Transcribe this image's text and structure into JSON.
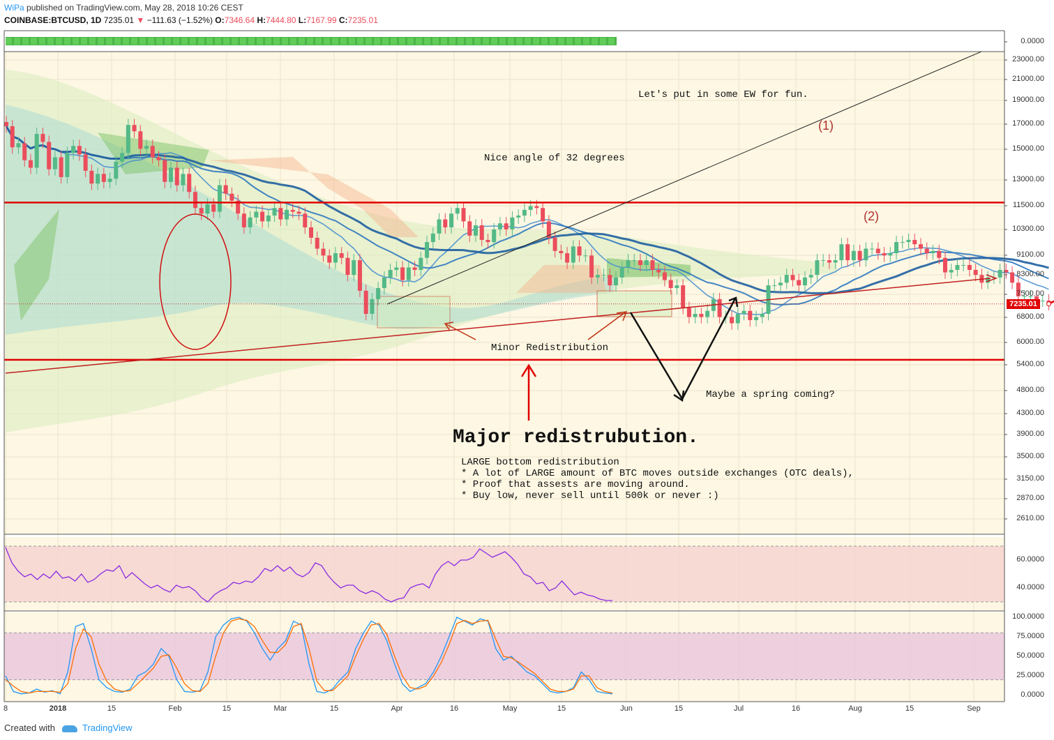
{
  "header": {
    "brand": "WiPa",
    "published": "published on TradingView.com, May 28, 2018 10:26 CEST",
    "symbol": "COINBASE:BTCUSD, 1D",
    "last": "7235.01",
    "change": "−111.63 (−1.52%)",
    "o_label": "O:",
    "o": "7346.64",
    "h_label": "H:",
    "h": "7444.80",
    "l_label": "L:",
    "l": "7167.99",
    "c_label": "C:",
    "c": "7235.01"
  },
  "footer": {
    "created_with": "Created with",
    "brand": "TradingView"
  },
  "annotations": {
    "ew": "Let's put in some EW for fun.",
    "angle": "Nice angle of 32 degrees",
    "minor": "Minor Redistribution",
    "spring": "Maybe a spring coming?",
    "major": "Major redistrubution.",
    "notes": [
      "LARGE bottom redistribution",
      "* A lot of LARGE amount of BTC moves outside exchanges (OTC deals),",
      "* Proof that assests are moving around.",
      "* Buy low, never sell until 500k or never :)"
    ],
    "wave1": "(1)",
    "wave2": "(2)"
  },
  "colors": {
    "up": "#53b987",
    "down": "#eb4d5c",
    "annotation_red": "#e00000",
    "rsi": "#8a2be2",
    "stoch_k": "#2196f3",
    "stoch_d": "#ff6d00"
  },
  "chart_data": [
    {
      "type": "candlestick",
      "title": "COINBASE:BTCUSD, 1D",
      "scale": "log",
      "ylim": [
        2400,
        24000
      ],
      "y_ticks": [
        "0.0000",
        "23000.00",
        "21000.00",
        "19000.00",
        "17000.00",
        "15000.00",
        "13000.00",
        "11500.00",
        "10300.00",
        "9100.00",
        "8300.00",
        "7500.00",
        "6800.00",
        "6000.00",
        "5400.00",
        "4800.00",
        "4300.00",
        "3900.00",
        "3500.00",
        "3150.00",
        "2870.00",
        "2610.00"
      ],
      "x_ticks": [
        "8",
        "2018",
        "15",
        "Feb",
        "15",
        "Mar",
        "15",
        "Apr",
        "16",
        "May",
        "15",
        "Jun",
        "15",
        "Jul",
        "16",
        "Aug",
        "15",
        "Sep"
      ],
      "last_price_label": "7235.01",
      "candles": [
        {
          "d": "Dec 8",
          "c": 16800
        },
        {
          "d": "Dec 9",
          "c": 15200
        },
        {
          "d": "Dec 10",
          "c": 15500
        },
        {
          "d": "Dec 11",
          "c": 14300
        },
        {
          "d": "Dec 12",
          "c": 13800
        },
        {
          "d": "Dec 13",
          "c": 16200
        },
        {
          "d": "Dec 14",
          "c": 15600
        },
        {
          "d": "Dec 15",
          "c": 13700
        },
        {
          "d": "Dec 16",
          "c": 14500
        },
        {
          "d": "Dec 17",
          "c": 13200
        },
        {
          "d": "Dec 18",
          "c": 14800
        },
        {
          "d": "Dec 19",
          "c": 15300
        },
        {
          "d": "Dec 20",
          "c": 14700
        },
        {
          "d": "Dec 21",
          "c": 13600
        },
        {
          "d": "Dec 22",
          "c": 12800
        },
        {
          "d": "Dec 23",
          "c": 13400
        },
        {
          "d": "Dec 24",
          "c": 12900
        },
        {
          "d": "Dec 25",
          "c": 13100
        },
        {
          "d": "Dec 26",
          "c": 14200
        },
        {
          "d": "Dec 27",
          "c": 14800
        },
        {
          "d": "Dec 28",
          "c": 16900
        },
        {
          "d": "Dec 29",
          "c": 16400
        },
        {
          "d": "Dec 30",
          "c": 15100
        },
        {
          "d": "Dec 31",
          "c": 15300
        },
        {
          "d": "Jan 1",
          "c": 14500
        },
        {
          "d": "Jan 2",
          "c": 14300
        },
        {
          "d": "Jan 3",
          "c": 12900
        },
        {
          "d": "Jan 4",
          "c": 13800
        },
        {
          "d": "Jan 5",
          "c": 12700
        },
        {
          "d": "Jan 6",
          "c": 13400
        },
        {
          "d": "Jan 7",
          "c": 12300
        },
        {
          "d": "Jan 8",
          "c": 11400
        },
        {
          "d": "Jan 9",
          "c": 11100
        },
        {
          "d": "Jan 10",
          "c": 11600
        },
        {
          "d": "Jan 11",
          "c": 11200
        },
        {
          "d": "Jan 12",
          "c": 12700
        },
        {
          "d": "Jan 13",
          "c": 12200
        },
        {
          "d": "Jan 14",
          "c": 11800
        },
        {
          "d": "Jan 15",
          "c": 11100
        },
        {
          "d": "Jan 16",
          "c": 10400
        },
        {
          "d": "Jan 17",
          "c": 10900
        },
        {
          "d": "Jan 18",
          "c": 11200
        },
        {
          "d": "Jan 19",
          "c": 10700
        },
        {
          "d": "Jan 20",
          "c": 11000
        },
        {
          "d": "Jan 21",
          "c": 11400
        },
        {
          "d": "Jan 22",
          "c": 10800
        },
        {
          "d": "Jan 23",
          "c": 11300
        },
        {
          "d": "Jan 24",
          "c": 11200
        },
        {
          "d": "Jan 25",
          "c": 11100
        },
        {
          "d": "Jan 26",
          "c": 10400
        },
        {
          "d": "Jan 27",
          "c": 9900
        },
        {
          "d": "Jan 28",
          "c": 9400
        },
        {
          "d": "Jan 29",
          "c": 9100
        },
        {
          "d": "Jan 30",
          "c": 8800
        },
        {
          "d": "Jan 31",
          "c": 9200
        },
        {
          "d": "Feb 1",
          "c": 9000
        },
        {
          "d": "Feb 2",
          "c": 8300
        },
        {
          "d": "Feb 3",
          "c": 8900
        },
        {
          "d": "Feb 4",
          "c": 7700
        },
        {
          "d": "Feb 5",
          "c": 6900
        },
        {
          "d": "Feb 6",
          "c": 7400
        },
        {
          "d": "Feb 7",
          "c": 7800
        },
        {
          "d": "Feb 8",
          "c": 8200
        },
        {
          "d": "Feb 9",
          "c": 8500
        },
        {
          "d": "Feb 10",
          "c": 8600
        },
        {
          "d": "Feb 11",
          "c": 8100
        },
        {
          "d": "Feb 12",
          "c": 8600
        },
        {
          "d": "Feb 13",
          "c": 8500
        },
        {
          "d": "Feb 14",
          "c": 9000
        },
        {
          "d": "Feb 15",
          "c": 9700
        },
        {
          "d": "Feb 16",
          "c": 10100
        },
        {
          "d": "Feb 17",
          "c": 10800
        },
        {
          "d": "Feb 18",
          "c": 10400
        },
        {
          "d": "Feb 19",
          "c": 11100
        },
        {
          "d": "Feb 20",
          "c": 11400
        },
        {
          "d": "Feb 21",
          "c": 10700
        },
        {
          "d": "Feb 22",
          "c": 10000
        },
        {
          "d": "Feb 23",
          "c": 10500
        },
        {
          "d": "Feb 24",
          "c": 9800
        },
        {
          "d": "Feb 25",
          "c": 9700
        },
        {
          "d": "Feb 26",
          "c": 10300
        },
        {
          "d": "Feb 27",
          "c": 10600
        },
        {
          "d": "Feb 28",
          "c": 10300
        },
        {
          "d": "Mar 1",
          "c": 10900
        },
        {
          "d": "Mar 2",
          "c": 11000
        },
        {
          "d": "Mar 3",
          "c": 11300
        },
        {
          "d": "Mar 4",
          "c": 11500
        },
        {
          "d": "Mar 5",
          "c": 11400
        },
        {
          "d": "Mar 6",
          "c": 10700
        },
        {
          "d": "Mar 7",
          "c": 9900
        },
        {
          "d": "Mar 8",
          "c": 9300
        },
        {
          "d": "Mar 9",
          "c": 9200
        },
        {
          "d": "Mar 10",
          "c": 8800
        },
        {
          "d": "Mar 11",
          "c": 9500
        },
        {
          "d": "Mar 12",
          "c": 9100
        },
        {
          "d": "Mar 13",
          "c": 9100
        },
        {
          "d": "Mar 14",
          "c": 8200
        },
        {
          "d": "Mar 15",
          "c": 8300
        },
        {
          "d": "Mar 16",
          "c": 8300
        },
        {
          "d": "Mar 17",
          "c": 7900
        },
        {
          "d": "Mar 18",
          "c": 8200
        },
        {
          "d": "Mar 19",
          "c": 8600
        },
        {
          "d": "Mar 20",
          "c": 8900
        },
        {
          "d": "Mar 21",
          "c": 8900
        },
        {
          "d": "Mar 22",
          "c": 8700
        },
        {
          "d": "Mar 23",
          "c": 8900
        },
        {
          "d": "Mar 24",
          "c": 8500
        },
        {
          "d": "Mar 25",
          "c": 8400
        },
        {
          "d": "Mar 26",
          "c": 8100
        },
        {
          "d": "Mar 27",
          "c": 7800
        },
        {
          "d": "Mar 28",
          "c": 7900
        },
        {
          "d": "Mar 29",
          "c": 7100
        },
        {
          "d": "Mar 30",
          "c": 6800
        },
        {
          "d": "Mar 31",
          "c": 6900
        },
        {
          "d": "Apr 1",
          "c": 6800
        },
        {
          "d": "Apr 2",
          "c": 7000
        },
        {
          "d": "Apr 3",
          "c": 7400
        },
        {
          "d": "Apr 4",
          "c": 6800
        },
        {
          "d": "Apr 5",
          "c": 6800
        },
        {
          "d": "Apr 6",
          "c": 6600
        },
        {
          "d": "Apr 7",
          "c": 6900
        },
        {
          "d": "Apr 8",
          "c": 7000
        },
        {
          "d": "Apr 9",
          "c": 6700
        },
        {
          "d": "Apr 10",
          "c": 6800
        },
        {
          "d": "Apr 11",
          "c": 6900
        },
        {
          "d": "Apr 12",
          "c": 7900
        },
        {
          "d": "Apr 13",
          "c": 7900
        },
        {
          "d": "Apr 14",
          "c": 8000
        },
        {
          "d": "Apr 15",
          "c": 8300
        },
        {
          "d": "Apr 16",
          "c": 8100
        },
        {
          "d": "Apr 17",
          "c": 7900
        },
        {
          "d": "Apr 18",
          "c": 8200
        },
        {
          "d": "Apr 19",
          "c": 8300
        },
        {
          "d": "Apr 20",
          "c": 8900
        },
        {
          "d": "Apr 21",
          "c": 8900
        },
        {
          "d": "Apr 22",
          "c": 8800
        },
        {
          "d": "Apr 23",
          "c": 8900
        },
        {
          "d": "Apr 24",
          "c": 9600
        },
        {
          "d": "Apr 25",
          "c": 8900
        },
        {
          "d": "Apr 26",
          "c": 9300
        },
        {
          "d": "Apr 27",
          "c": 8900
        },
        {
          "d": "Apr 28",
          "c": 9400
        },
        {
          "d": "Apr 29",
          "c": 9400
        },
        {
          "d": "Apr 30",
          "c": 9200
        },
        {
          "d": "May 1",
          "c": 9100
        },
        {
          "d": "May 2",
          "c": 9200
        },
        {
          "d": "May 3",
          "c": 9700
        },
        {
          "d": "May 4",
          "c": 9700
        },
        {
          "d": "May 5",
          "c": 9800
        },
        {
          "d": "May 6",
          "c": 9600
        },
        {
          "d": "May 7",
          "c": 9400
        },
        {
          "d": "May 8",
          "c": 9200
        },
        {
          "d": "May 9",
          "c": 9300
        },
        {
          "d": "May 10",
          "c": 9000
        },
        {
          "d": "May 11",
          "c": 8400
        },
        {
          "d": "May 12",
          "c": 8500
        },
        {
          "d": "May 13",
          "c": 8700
        },
        {
          "d": "May 14",
          "c": 8700
        },
        {
          "d": "May 15",
          "c": 8500
        },
        {
          "d": "May 16",
          "c": 8300
        },
        {
          "d": "May 17",
          "c": 8000
        },
        {
          "d": "May 18",
          "c": 8200
        },
        {
          "d": "May 19",
          "c": 8200
        },
        {
          "d": "May 20",
          "c": 8500
        },
        {
          "d": "May 21",
          "c": 8400
        },
        {
          "d": "May 22",
          "c": 8000
        },
        {
          "d": "May 23",
          "c": 7500
        },
        {
          "d": "May 24",
          "c": 7500
        },
        {
          "d": "May 25",
          "c": 7500
        },
        {
          "d": "May 26",
          "c": 7350
        },
        {
          "d": "May 27",
          "c": 7350
        },
        {
          "d": "May 28",
          "c": 7235
        }
      ],
      "horizontal_levels": [
        11700,
        5550
      ],
      "trendline_start": {
        "d": "Dec 8",
        "price": 5100
      },
      "ew_path": [
        [
          "May 28",
          7235
        ],
        [
          "Jul 20",
          15700
        ],
        [
          "Aug 4",
          11600
        ],
        [
          "Sep 5",
          23700
        ]
      ],
      "spring_path": [
        [
          "Jun 1",
          6900
        ],
        [
          "Jun 17",
          4600
        ],
        [
          "Jul 1",
          7400
        ]
      ]
    },
    {
      "type": "line",
      "title": "RSI",
      "ylim": [
        20,
        75
      ],
      "y_ticks": [
        "60.0000",
        "40.0000"
      ],
      "band": [
        30,
        70
      ],
      "values": [
        69,
        58,
        52,
        48,
        50,
        46,
        50,
        47,
        52,
        47,
        48,
        45,
        50,
        44,
        46,
        50,
        53,
        52,
        56,
        47,
        51,
        47,
        43,
        40,
        42,
        39,
        37,
        42,
        40,
        41,
        38,
        33,
        30,
        35,
        38,
        40,
        44,
        43,
        45,
        44,
        48,
        54,
        52,
        56,
        52,
        55,
        50,
        48,
        51,
        58,
        56,
        49,
        44,
        40,
        42,
        42,
        38,
        36,
        38,
        36,
        32,
        30,
        32,
        33,
        40,
        42,
        43,
        40,
        50,
        56,
        59,
        56,
        60,
        60,
        62,
        68,
        65,
        62,
        64,
        66,
        62,
        57,
        50,
        48,
        43,
        44,
        38,
        40,
        45,
        40,
        35,
        37,
        35,
        34,
        32,
        31,
        31
      ]
    },
    {
      "type": "line",
      "title": "Stoch",
      "ylim": [
        0,
        100
      ],
      "y_ticks": [
        "100.0000",
        "75.0000",
        "50.0000",
        "25.0000",
        "0.0000"
      ],
      "band": [
        20,
        80
      ],
      "series": [
        {
          "values": [
            25,
            5,
            2,
            3,
            8,
            4,
            6,
            2,
            30,
            88,
            92,
            60,
            20,
            10,
            5,
            4,
            8,
            25,
            30,
            40,
            60,
            50,
            20,
            5,
            4,
            6,
            30,
            75,
            90,
            98,
            100,
            95,
            80,
            60,
            45,
            60,
            70,
            95,
            90,
            40,
            5,
            3,
            8,
            20,
            30,
            60,
            80,
            95,
            90,
            70,
            40,
            15,
            5,
            10,
            15,
            30,
            50,
            75,
            100,
            95,
            90,
            98,
            95,
            60,
            45,
            50,
            40,
            30,
            25,
            15,
            5,
            3,
            5,
            10,
            30,
            20,
            5,
            3,
            2
          ]
        },
        {
          "values": [
            20,
            12,
            5,
            3,
            5,
            5,
            5,
            4,
            15,
            60,
            85,
            75,
            40,
            18,
            8,
            5,
            6,
            15,
            25,
            35,
            50,
            52,
            35,
            15,
            6,
            5,
            15,
            50,
            80,
            95,
            98,
            96,
            88,
            70,
            55,
            55,
            65,
            88,
            92,
            60,
            18,
            6,
            6,
            15,
            25,
            50,
            72,
            90,
            92,
            78,
            50,
            25,
            10,
            8,
            12,
            25,
            42,
            65,
            92,
            96,
            92,
            95,
            96,
            72,
            50,
            48,
            42,
            35,
            28,
            18,
            8,
            5,
            5,
            8,
            25,
            25,
            10,
            5,
            3
          ]
        }
      ]
    }
  ]
}
